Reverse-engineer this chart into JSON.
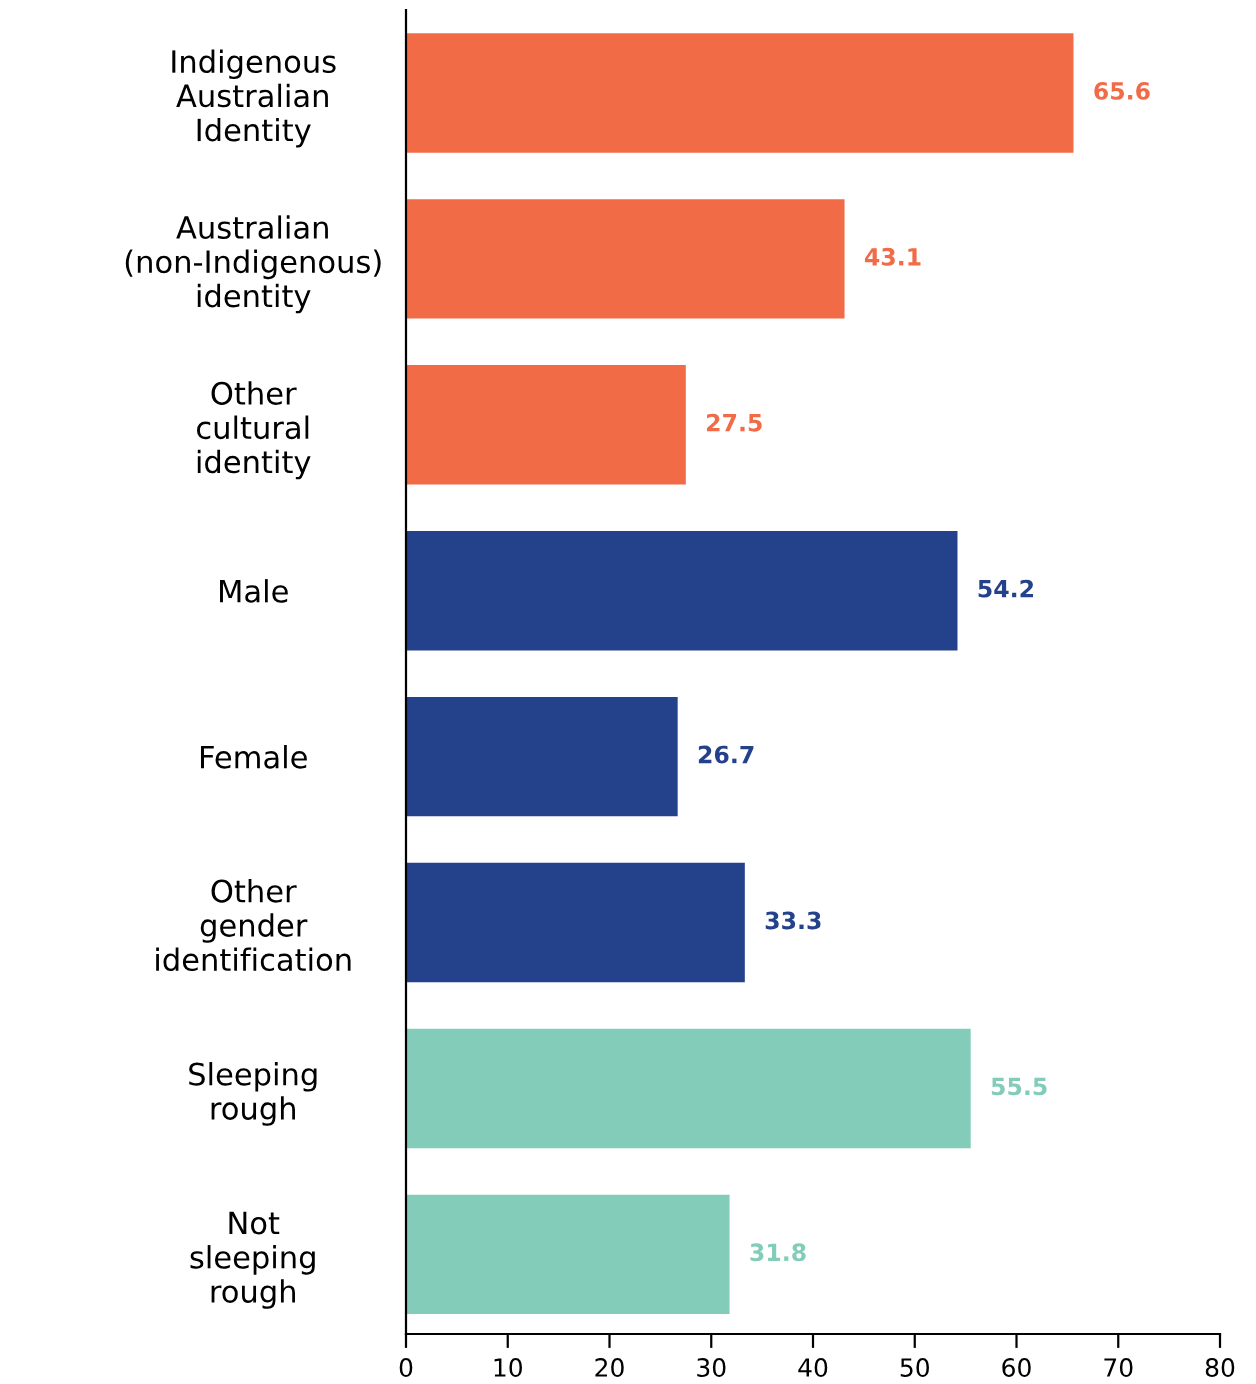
{
  "chart_data": {
    "type": "bar",
    "orientation": "horizontal",
    "categories": [
      "Indigenous\nAustralian\nIdentity",
      "Australian\n(non-Indigenous)\nidentity",
      "Other\ncultural\nidentity",
      "Male",
      "Female",
      "Other\ngender\nidentification",
      "Sleeping\nrough",
      "Not\nsleeping\nrough"
    ],
    "values": [
      65.6,
      43.1,
      27.5,
      54.2,
      26.7,
      33.3,
      55.5,
      31.8
    ],
    "colors": [
      "#f26b47",
      "#f26b47",
      "#f26b47",
      "#24418c",
      "#24418c",
      "#24418c",
      "#82ccb9",
      "#82ccb9"
    ],
    "xlim": [
      0,
      80
    ],
    "xticks": [
      0,
      10,
      20,
      30,
      40,
      50,
      60,
      70,
      80
    ],
    "data_labels": true,
    "grid": false,
    "legend": false
  }
}
